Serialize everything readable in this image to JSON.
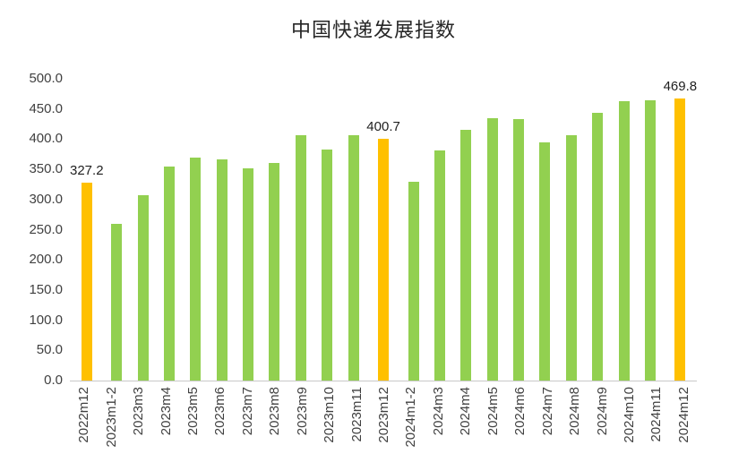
{
  "chart_data": {
    "type": "bar",
    "title": "中国快递发展指数",
    "categories": [
      "2022m12",
      "2023m1-2",
      "2023m3",
      "2023m4",
      "2023m5",
      "2023m6",
      "2023m7",
      "2023m8",
      "2023m9",
      "2023m10",
      "2023m11",
      "2023m12",
      "2024m1-2",
      "2024m3",
      "2024m4",
      "2024m5",
      "2024m6",
      "2024m7",
      "2024m8",
      "2024m9",
      "2024m10",
      "2024m11",
      "2024m12"
    ],
    "values": [
      327.2,
      260,
      307,
      355,
      370,
      366,
      351,
      360,
      406,
      383,
      407,
      400.7,
      329,
      381,
      416,
      434,
      433,
      394,
      407,
      443,
      463,
      464,
      469.8
    ],
    "highlight_indices": [
      0,
      11,
      22
    ],
    "data_labels": {
      "0": "327.2",
      "11": "400.7",
      "22": "469.8"
    },
    "colors": {
      "bar_default": "#92D050",
      "bar_highlight": "#FFC000",
      "axis_line": "#C8C8C8",
      "tick_text": "#404040",
      "title_text": "#262626"
    },
    "ylim": [
      0,
      500
    ],
    "ytick_step": 50,
    "ytick_labels": [
      "0.0",
      "50.0",
      "100.0",
      "150.0",
      "200.0",
      "250.0",
      "300.0",
      "350.0",
      "400.0",
      "450.0",
      "500.0"
    ],
    "xlabel": "",
    "ylabel": "",
    "grid": "off",
    "legend": "none"
  }
}
